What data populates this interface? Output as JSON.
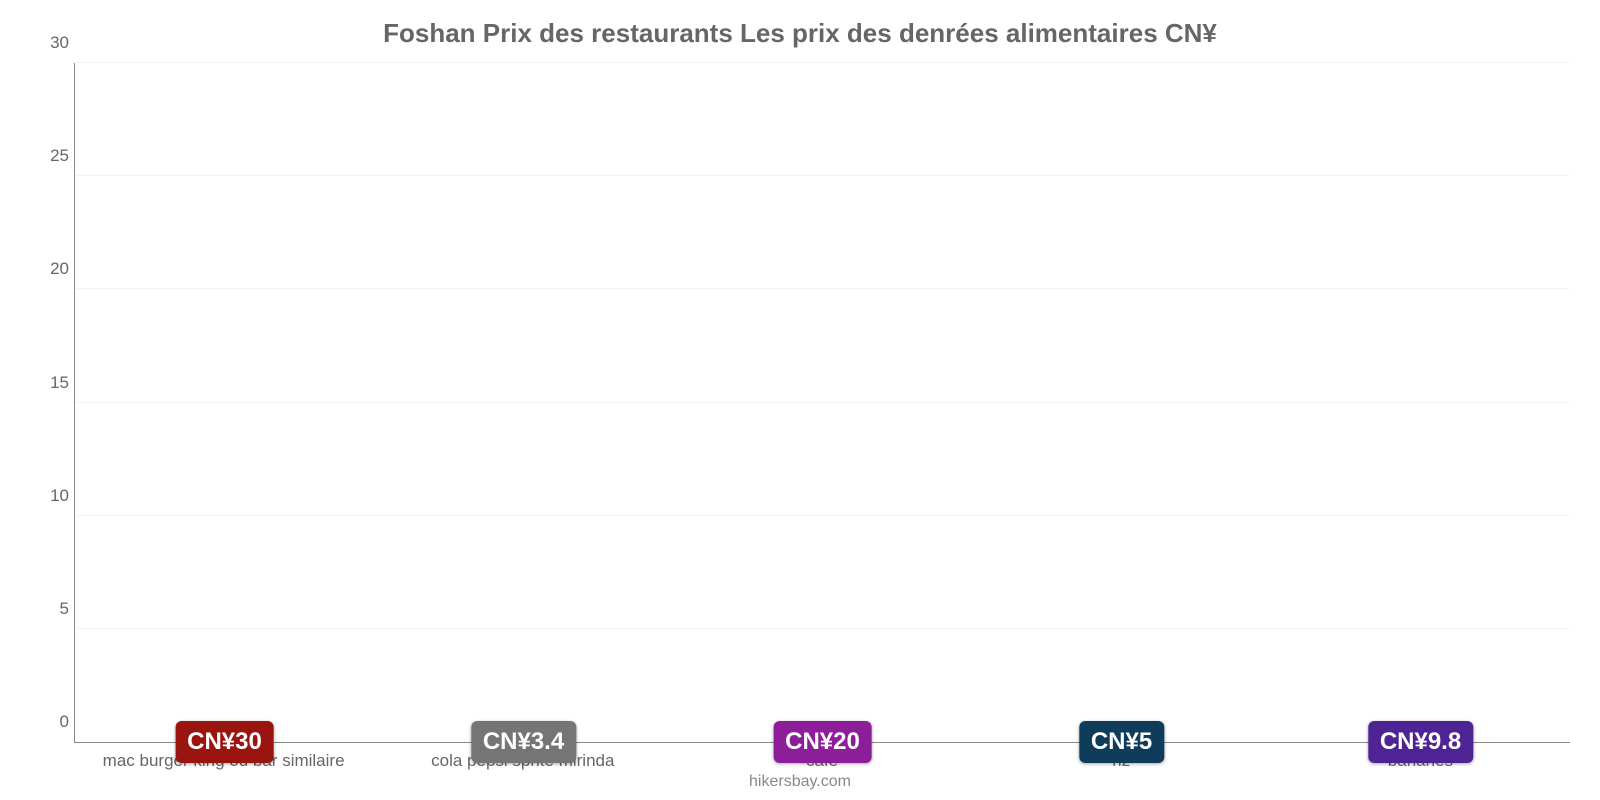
{
  "chart": {
    "type": "bar",
    "title": "Foshan Prix des restaurants Les prix des denrées alimentaires CN¥",
    "title_fontsize": 26,
    "title_color": "#666666",
    "background_color": "#ffffff",
    "grid_color": "#f3f3f3",
    "axis_color": "#888888",
    "label_color": "#666666",
    "xlabel_fontsize": 17,
    "ytick_fontsize": 17,
    "ylim": [
      0,
      30
    ],
    "ytick_step": 5,
    "yticks": [
      0,
      5,
      10,
      15,
      20,
      25,
      30
    ],
    "bar_width_pct": 80,
    "value_badge_fontsize": 24,
    "value_badge_text_color": "#ffffff",
    "value_badge_radius": 6,
    "categories": [
      "mac burger king ou bar similaire",
      "cola pepsi sprite mirinda",
      "café",
      "riz",
      "bananes"
    ],
    "bars": [
      {
        "value": 30,
        "value_label": "CN¥30",
        "color": "#e93e3a",
        "badge_bg": "#9a1410",
        "badge_y": 16.5
      },
      {
        "value": 3.4,
        "value_label": "CN¥3.4",
        "color": "#2e8fd9",
        "badge_bg": "#757575",
        "badge_y": 3.4
      },
      {
        "value": 20,
        "value_label": "CN¥20",
        "color": "#d235e0",
        "badge_bg": "#8e1d9a",
        "badge_y": 11.5
      },
      {
        "value": 5,
        "value_label": "CN¥5",
        "color": "#2e8fd9",
        "badge_bg": "#0f3c5a",
        "badge_y": 4.5
      },
      {
        "value": 9.8,
        "value_label": "CN¥9.8",
        "color": "#8447d8",
        "badge_bg": "#4e2394",
        "badge_y": 6.5
      }
    ],
    "footer": "hikersbay.com",
    "footer_color": "#888888",
    "footer_fontsize": 16
  }
}
